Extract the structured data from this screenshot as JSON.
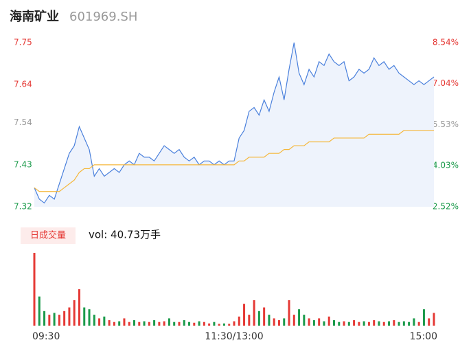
{
  "header": {
    "name": "海南矿业",
    "code": "601969.SH"
  },
  "chart_data": {
    "type": "intraday",
    "x": [
      0,
      3,
      6,
      9,
      12,
      15,
      18,
      21,
      24,
      27,
      30,
      33,
      36,
      39,
      42,
      45,
      48,
      51,
      54,
      57,
      60,
      63,
      66,
      69,
      72,
      75,
      78,
      81,
      84,
      87,
      90,
      93,
      96,
      99,
      102,
      105,
      108,
      111,
      114,
      117,
      120,
      123,
      126,
      129,
      132,
      135,
      138,
      141,
      144,
      147,
      150,
      153,
      156,
      159,
      162,
      165,
      168,
      171,
      174,
      177,
      180,
      183,
      186,
      189,
      192,
      195,
      198,
      201,
      204,
      207,
      210,
      213,
      216,
      219,
      222,
      225,
      228,
      231,
      234,
      237,
      240
    ],
    "xlim": [
      0,
      240
    ],
    "xticks": [
      {
        "value": 0,
        "label": "09:30"
      },
      {
        "value": 120,
        "label": "11:30/13:00"
      },
      {
        "value": 240,
        "label": "15:00"
      }
    ],
    "series": [
      {
        "name": "price",
        "color": "#4a80dc",
        "values": [
          7.37,
          7.34,
          7.33,
          7.35,
          7.34,
          7.38,
          7.42,
          7.46,
          7.48,
          7.53,
          7.5,
          7.47,
          7.4,
          7.42,
          7.4,
          7.41,
          7.42,
          7.41,
          7.43,
          7.44,
          7.43,
          7.46,
          7.45,
          7.45,
          7.44,
          7.46,
          7.48,
          7.47,
          7.46,
          7.47,
          7.45,
          7.44,
          7.45,
          7.43,
          7.44,
          7.44,
          7.43,
          7.44,
          7.43,
          7.44,
          7.44,
          7.5,
          7.52,
          7.57,
          7.58,
          7.56,
          7.6,
          7.57,
          7.62,
          7.66,
          7.6,
          7.68,
          7.75,
          7.67,
          7.64,
          7.68,
          7.66,
          7.7,
          7.69,
          7.72,
          7.7,
          7.69,
          7.7,
          7.65,
          7.66,
          7.68,
          7.67,
          7.68,
          7.71,
          7.69,
          7.7,
          7.68,
          7.69,
          7.67,
          7.66,
          7.65,
          7.64,
          7.65,
          7.64,
          7.65,
          7.66
        ]
      },
      {
        "name": "average",
        "color": "#f5b73b",
        "values": [
          7.37,
          7.36,
          7.36,
          7.36,
          7.36,
          7.36,
          7.37,
          7.38,
          7.39,
          7.41,
          7.42,
          7.42,
          7.43,
          7.43,
          7.43,
          7.43,
          7.43,
          7.43,
          7.43,
          7.43,
          7.43,
          7.43,
          7.43,
          7.43,
          7.43,
          7.43,
          7.43,
          7.43,
          7.43,
          7.43,
          7.43,
          7.43,
          7.43,
          7.43,
          7.43,
          7.43,
          7.43,
          7.43,
          7.43,
          7.43,
          7.43,
          7.44,
          7.44,
          7.45,
          7.45,
          7.45,
          7.45,
          7.46,
          7.46,
          7.46,
          7.47,
          7.47,
          7.48,
          7.48,
          7.48,
          7.49,
          7.49,
          7.49,
          7.49,
          7.49,
          7.5,
          7.5,
          7.5,
          7.5,
          7.5,
          7.5,
          7.5,
          7.51,
          7.51,
          7.51,
          7.51,
          7.51,
          7.51,
          7.51,
          7.52,
          7.52,
          7.52,
          7.52,
          7.52,
          7.52,
          7.52
        ]
      }
    ],
    "ylim": [
      7.32,
      7.75
    ],
    "yticks": [
      7.75,
      7.64,
      7.54,
      7.43,
      7.32
    ],
    "y2lim": [
      2.52,
      8.54
    ],
    "y2ticks": [
      {
        "value": 8.54,
        "label": "8.54%"
      },
      {
        "value": 7.04,
        "label": "7.04%"
      },
      {
        "value": 5.53,
        "label": "5.53%"
      },
      {
        "value": 4.03,
        "label": "4.03%"
      },
      {
        "value": 2.52,
        "label": "2.52%"
      }
    ],
    "volume_title": "日成交量",
    "volume_label": "vol: 40.73万手",
    "volumes": [
      2.0,
      0.8,
      0.4,
      0.3,
      0.35,
      0.3,
      0.4,
      0.5,
      0.7,
      1.0,
      0.5,
      0.45,
      0.3,
      0.2,
      0.25,
      0.15,
      0.1,
      0.12,
      0.2,
      0.1,
      0.15,
      0.1,
      0.12,
      0.1,
      0.15,
      0.1,
      0.12,
      0.2,
      0.1,
      0.1,
      0.15,
      0.1,
      0.08,
      0.12,
      0.1,
      0.06,
      0.1,
      0.05,
      0.06,
      0.05,
      0.12,
      0.25,
      0.6,
      0.3,
      0.7,
      0.4,
      0.5,
      0.3,
      0.2,
      0.15,
      0.2,
      0.7,
      0.3,
      0.45,
      0.3,
      0.2,
      0.15,
      0.2,
      0.12,
      0.25,
      0.15,
      0.1,
      0.12,
      0.1,
      0.15,
      0.1,
      0.12,
      0.1,
      0.15,
      0.12,
      0.1,
      0.12,
      0.15,
      0.1,
      0.12,
      0.1,
      0.2,
      0.1,
      0.45,
      0.2,
      0.35
    ]
  }
}
